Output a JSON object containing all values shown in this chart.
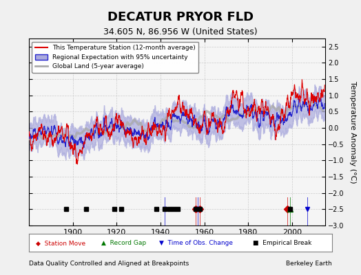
{
  "title": "DECATUR PRYOR FLD",
  "subtitle": "34.605 N, 86.956 W (United States)",
  "ylabel": "Temperature Anomaly (°C)",
  "xlabel_left": "Data Quality Controlled and Aligned at Breakpoints",
  "xlabel_right": "Berkeley Earth",
  "ylim": [
    -3,
    2.75
  ],
  "yticks": [
    -3,
    -2.5,
    -2,
    -1.5,
    -1,
    -0.5,
    0,
    0.5,
    1,
    1.5,
    2,
    2.5
  ],
  "xlim": [
    1880,
    2015
  ],
  "xticks": [
    1900,
    1920,
    1940,
    1960,
    1980,
    2000
  ],
  "legend_labels": [
    "This Temperature Station (12-month average)",
    "Regional Expectation with 95% uncertainty",
    "Global Land (5-year average)"
  ],
  "marker_legend": {
    "Station Move": {
      "color": "#cc0000",
      "marker": "D"
    },
    "Record Gap": {
      "color": "#007700",
      "marker": "^"
    },
    "Time of Obs. Change": {
      "color": "#0000cc",
      "marker": "v"
    },
    "Empirical Break": {
      "color": "#000000",
      "marker": "s"
    }
  },
  "colors": {
    "station": "#dd0000",
    "regional": "#2222cc",
    "regional_fill": "#aaaadd",
    "global": "#aaaaaa",
    "background": "#f0f0f0",
    "plot_bg": "#f5f5f5",
    "grid": "#cccccc"
  },
  "station_move_years": [
    1956,
    1958,
    1998
  ],
  "record_gap_years": [
    1999
  ],
  "tobs_change_years": [
    1942,
    1957,
    2007
  ],
  "empirical_break_years": [
    1897,
    1906,
    1919,
    1922,
    1938,
    1942,
    1944,
    1946,
    1948,
    1956,
    1958,
    1999
  ],
  "random_seed": 42
}
